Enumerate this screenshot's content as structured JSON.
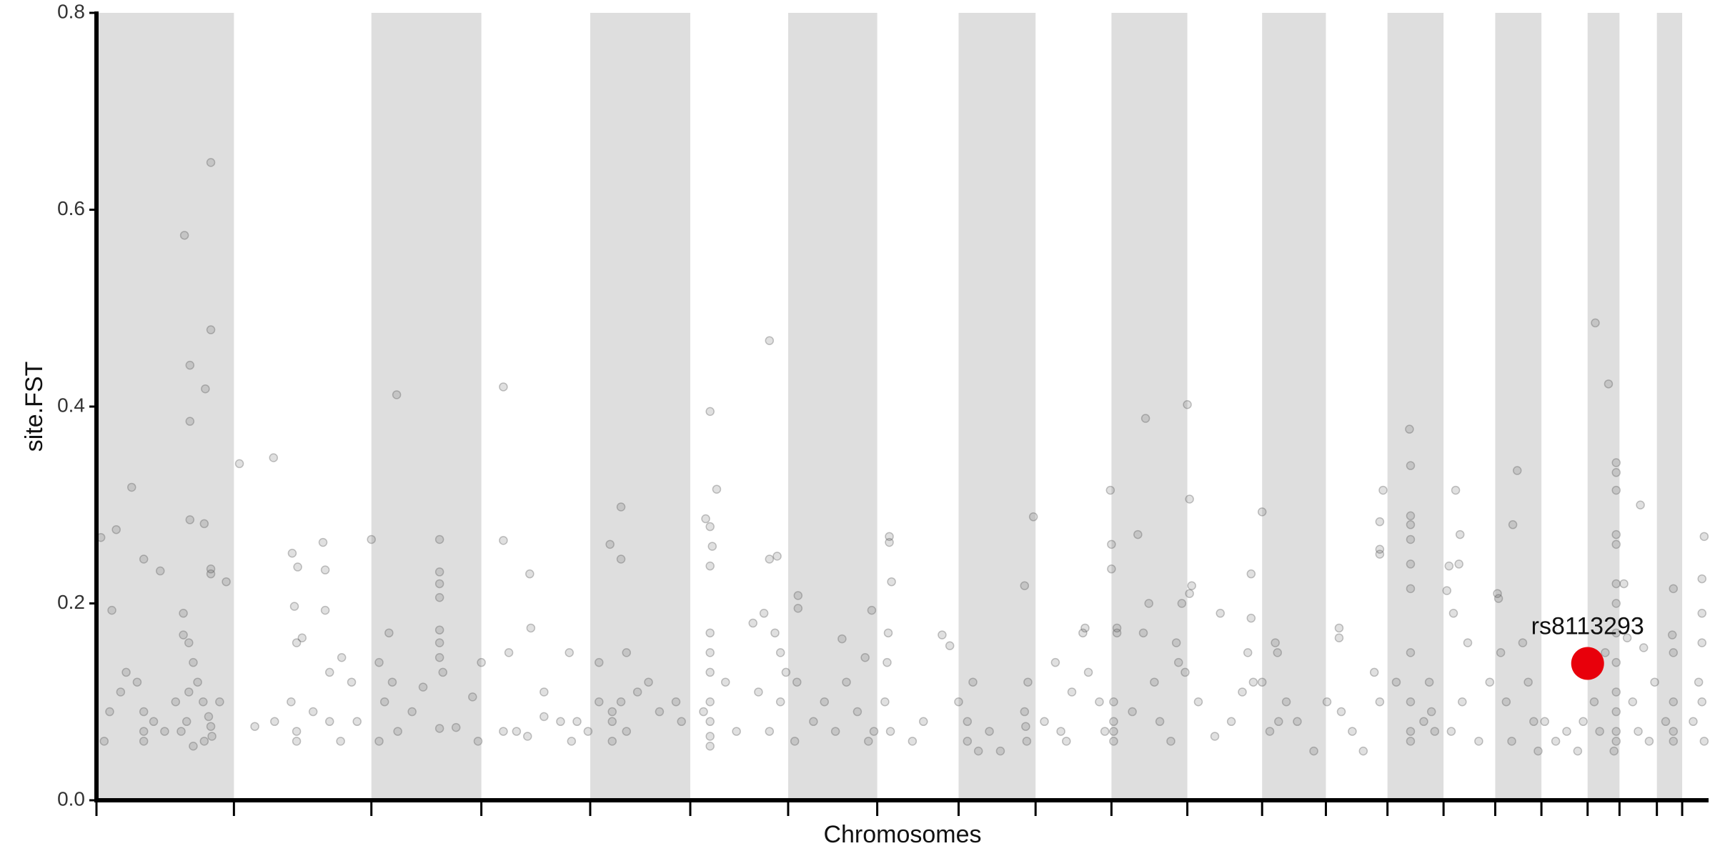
{
  "chart_data": {
    "type": "scatter",
    "xlabel": "Chromosomes",
    "ylabel": "site.FST",
    "xlim": [
      88,
      1554
    ],
    "ylim": [
      0,
      0.8
    ],
    "yticks": [
      {
        "value": 0,
        "label": "0.0"
      },
      0.2,
      0.4,
      0.6,
      0.8
    ],
    "chromosome_starts": [
      88,
      213,
      338,
      438,
      537,
      628,
      717,
      798,
      872,
      942,
      1011,
      1080,
      1148,
      1206,
      1262,
      1313,
      1360,
      1402,
      1444,
      1473,
      1507,
      1530
    ],
    "band_color": "#dedede",
    "series": [
      {
        "color": "#555555",
        "x": [
          92,
          106,
          102,
          120,
          131,
          146,
          168,
          173,
          173,
          173,
          187,
          192,
          192,
          186,
          192,
          192,
          206,
          167,
          167,
          172,
          176,
          180,
          185,
          190,
          192,
          193,
          170,
          172,
          165,
          131,
          131,
          131,
          95,
          100,
          110,
          115,
          125,
          140,
          150,
          160,
          200,
          186,
          176,
          218,
          249,
          266,
          268,
          271,
          294,
          296,
          296,
          311,
          300,
          270,
          275,
          265,
          270,
          270,
          285,
          300,
          320,
          325,
          232,
          250,
          310,
          338,
          361,
          354,
          345,
          357,
          350,
          345,
          362,
          400,
          400,
          400,
          400,
          400,
          400,
          400,
          403,
          400,
          415,
          375,
          385,
          430,
          435,
          438,
          458,
          458,
          482,
          483,
          495,
          495,
          458,
          470,
          480,
          510,
          518,
          525,
          535,
          520,
          463,
          545,
          555,
          565,
          565,
          570,
          557,
          557,
          557,
          565,
          570,
          580,
          590,
          600,
          615,
          620,
          545,
          646,
          642,
          646,
          648,
          646,
          652,
          646,
          646,
          646,
          646,
          646,
          646,
          646,
          640,
          660,
          670,
          690,
          700,
          700,
          707,
          705,
          710,
          715,
          685,
          695,
          700,
          710,
          726,
          726,
          725,
          723,
          740,
          750,
          760,
          766,
          770,
          780,
          787,
          790,
          795,
          809,
          809,
          811,
          793,
          808,
          807,
          805,
          810,
          830,
          857,
          864,
          840,
          872,
          880,
          885,
          880,
          890,
          900,
          910,
          932,
          933,
          934,
          932,
          940,
          935,
          950,
          960,
          970,
          985,
          987,
          990,
          1000,
          1005,
          1010,
          1011,
          1011,
          965,
          975,
          1013,
          1013,
          1013,
          1013,
          1016,
          1016,
          1035,
          1042,
          1040,
          1045,
          1050,
          1055,
          1065,
          1070,
          1072,
          1075,
          1078,
          1030,
          1080,
          1082,
          1082,
          1084,
          1090,
          1105,
          1110,
          1120,
          1130,
          1140,
          1138,
          1138,
          1135,
          1148,
          1148,
          1155,
          1160,
          1162,
          1170,
          1180,
          1195,
          1163,
          1207,
          1218,
          1218,
          1220,
          1230,
          1240,
          1250,
          1255,
          1258,
          1255,
          1255,
          1255,
          1282,
          1283,
          1283,
          1283,
          1283,
          1283,
          1283,
          1283,
          1283,
          1283,
          1283,
          1270,
          1300,
          1302,
          1305,
          1295,
          1316,
          1318,
          1324,
          1328,
          1327,
          1322,
          1335,
          1330,
          1320,
          1345,
          1355,
          1362,
          1363,
          1365,
          1370,
          1380,
          1376,
          1385,
          1390,
          1395,
          1399,
          1375,
          1405,
          1415,
          1425,
          1435,
          1440,
          1451,
          1463,
          1470,
          1470,
          1470,
          1470,
          1470,
          1470,
          1470,
          1470,
          1470,
          1470,
          1470,
          1470,
          1470,
          1468,
          1450,
          1455,
          1460,
          1477,
          1480,
          1492,
          1495,
          1485,
          1490,
          1500,
          1505,
          1522,
          1521,
          1522,
          1522,
          1522,
          1522,
          1515,
          1550,
          1548,
          1548,
          1548,
          1545,
          1548,
          1540,
          1550
        ],
        "values": [
          0.267,
          0.275,
          0.193,
          0.318,
          0.245,
          0.233,
          0.574,
          0.442,
          0.385,
          0.285,
          0.418,
          0.648,
          0.478,
          0.281,
          0.235,
          0.23,
          0.222,
          0.19,
          0.168,
          0.16,
          0.14,
          0.12,
          0.1,
          0.085,
          0.075,
          0.065,
          0.08,
          0.11,
          0.07,
          0.09,
          0.07,
          0.06,
          0.06,
          0.09,
          0.11,
          0.13,
          0.12,
          0.08,
          0.07,
          0.1,
          0.1,
          0.06,
          0.055,
          0.342,
          0.348,
          0.251,
          0.197,
          0.237,
          0.262,
          0.234,
          0.193,
          0.145,
          0.13,
          0.16,
          0.165,
          0.1,
          0.07,
          0.06,
          0.09,
          0.08,
          0.12,
          0.08,
          0.075,
          0.08,
          0.06,
          0.265,
          0.412,
          0.17,
          0.14,
          0.12,
          0.1,
          0.06,
          0.07,
          0.265,
          0.232,
          0.22,
          0.206,
          0.173,
          0.16,
          0.145,
          0.13,
          0.073,
          0.074,
          0.09,
          0.115,
          0.105,
          0.06,
          0.14,
          0.42,
          0.264,
          0.23,
          0.175,
          0.11,
          0.085,
          0.07,
          0.07,
          0.065,
          0.08,
          0.15,
          0.08,
          0.07,
          0.06,
          0.15,
          0.1,
          0.26,
          0.298,
          0.245,
          0.15,
          0.09,
          0.08,
          0.06,
          0.1,
          0.07,
          0.11,
          0.12,
          0.09,
          0.1,
          0.08,
          0.14,
          0.395,
          0.286,
          0.278,
          0.258,
          0.238,
          0.316,
          0.17,
          0.15,
          0.13,
          0.1,
          0.08,
          0.065,
          0.055,
          0.09,
          0.12,
          0.07,
          0.11,
          0.467,
          0.245,
          0.248,
          0.17,
          0.15,
          0.13,
          0.18,
          0.19,
          0.07,
          0.1,
          0.208,
          0.195,
          0.12,
          0.06,
          0.08,
          0.1,
          0.07,
          0.164,
          0.12,
          0.09,
          0.145,
          0.06,
          0.07,
          0.268,
          0.262,
          0.222,
          0.193,
          0.17,
          0.14,
          0.1,
          0.07,
          0.06,
          0.168,
          0.157,
          0.08,
          0.1,
          0.08,
          0.12,
          0.06,
          0.05,
          0.07,
          0.05,
          0.09,
          0.075,
          0.06,
          0.218,
          0.288,
          0.12,
          0.08,
          0.14,
          0.06,
          0.17,
          0.175,
          0.13,
          0.1,
          0.07,
          0.315,
          0.26,
          0.235,
          0.07,
          0.11,
          0.1,
          0.08,
          0.07,
          0.06,
          0.175,
          0.17,
          0.27,
          0.388,
          0.17,
          0.2,
          0.12,
          0.08,
          0.06,
          0.16,
          0.14,
          0.2,
          0.13,
          0.09,
          0.402,
          0.306,
          0.21,
          0.218,
          0.1,
          0.065,
          0.19,
          0.08,
          0.11,
          0.12,
          0.23,
          0.185,
          0.15,
          0.293,
          0.12,
          0.07,
          0.16,
          0.15,
          0.1,
          0.08,
          0.05,
          0.08,
          0.1,
          0.175,
          0.165,
          0.09,
          0.07,
          0.05,
          0.13,
          0.1,
          0.315,
          0.283,
          0.255,
          0.25,
          0.377,
          0.34,
          0.289,
          0.28,
          0.265,
          0.24,
          0.215,
          0.15,
          0.1,
          0.07,
          0.06,
          0.12,
          0.12,
          0.09,
          0.07,
          0.08,
          0.213,
          0.238,
          0.315,
          0.27,
          0.24,
          0.19,
          0.16,
          0.1,
          0.07,
          0.06,
          0.12,
          0.21,
          0.205,
          0.15,
          0.1,
          0.335,
          0.28,
          0.16,
          0.12,
          0.08,
          0.05,
          0.06,
          0.08,
          0.06,
          0.07,
          0.05,
          0.08,
          0.485,
          0.423,
          0.343,
          0.333,
          0.315,
          0.27,
          0.26,
          0.22,
          0.2,
          0.17,
          0.14,
          0.11,
          0.09,
          0.07,
          0.06,
          0.05,
          0.1,
          0.07,
          0.15,
          0.22,
          0.165,
          0.3,
          0.155,
          0.1,
          0.07,
          0.06,
          0.12,
          0.215,
          0.168,
          0.15,
          0.1,
          0.07,
          0.06,
          0.08,
          0.268,
          0.225,
          0.19,
          0.16,
          0.12,
          0.1,
          0.08,
          0.06
        ]
      }
    ],
    "highlight": {
      "label": "rs8113293",
      "x": 1444,
      "value": 0.139,
      "color": "#e8000b"
    }
  }
}
